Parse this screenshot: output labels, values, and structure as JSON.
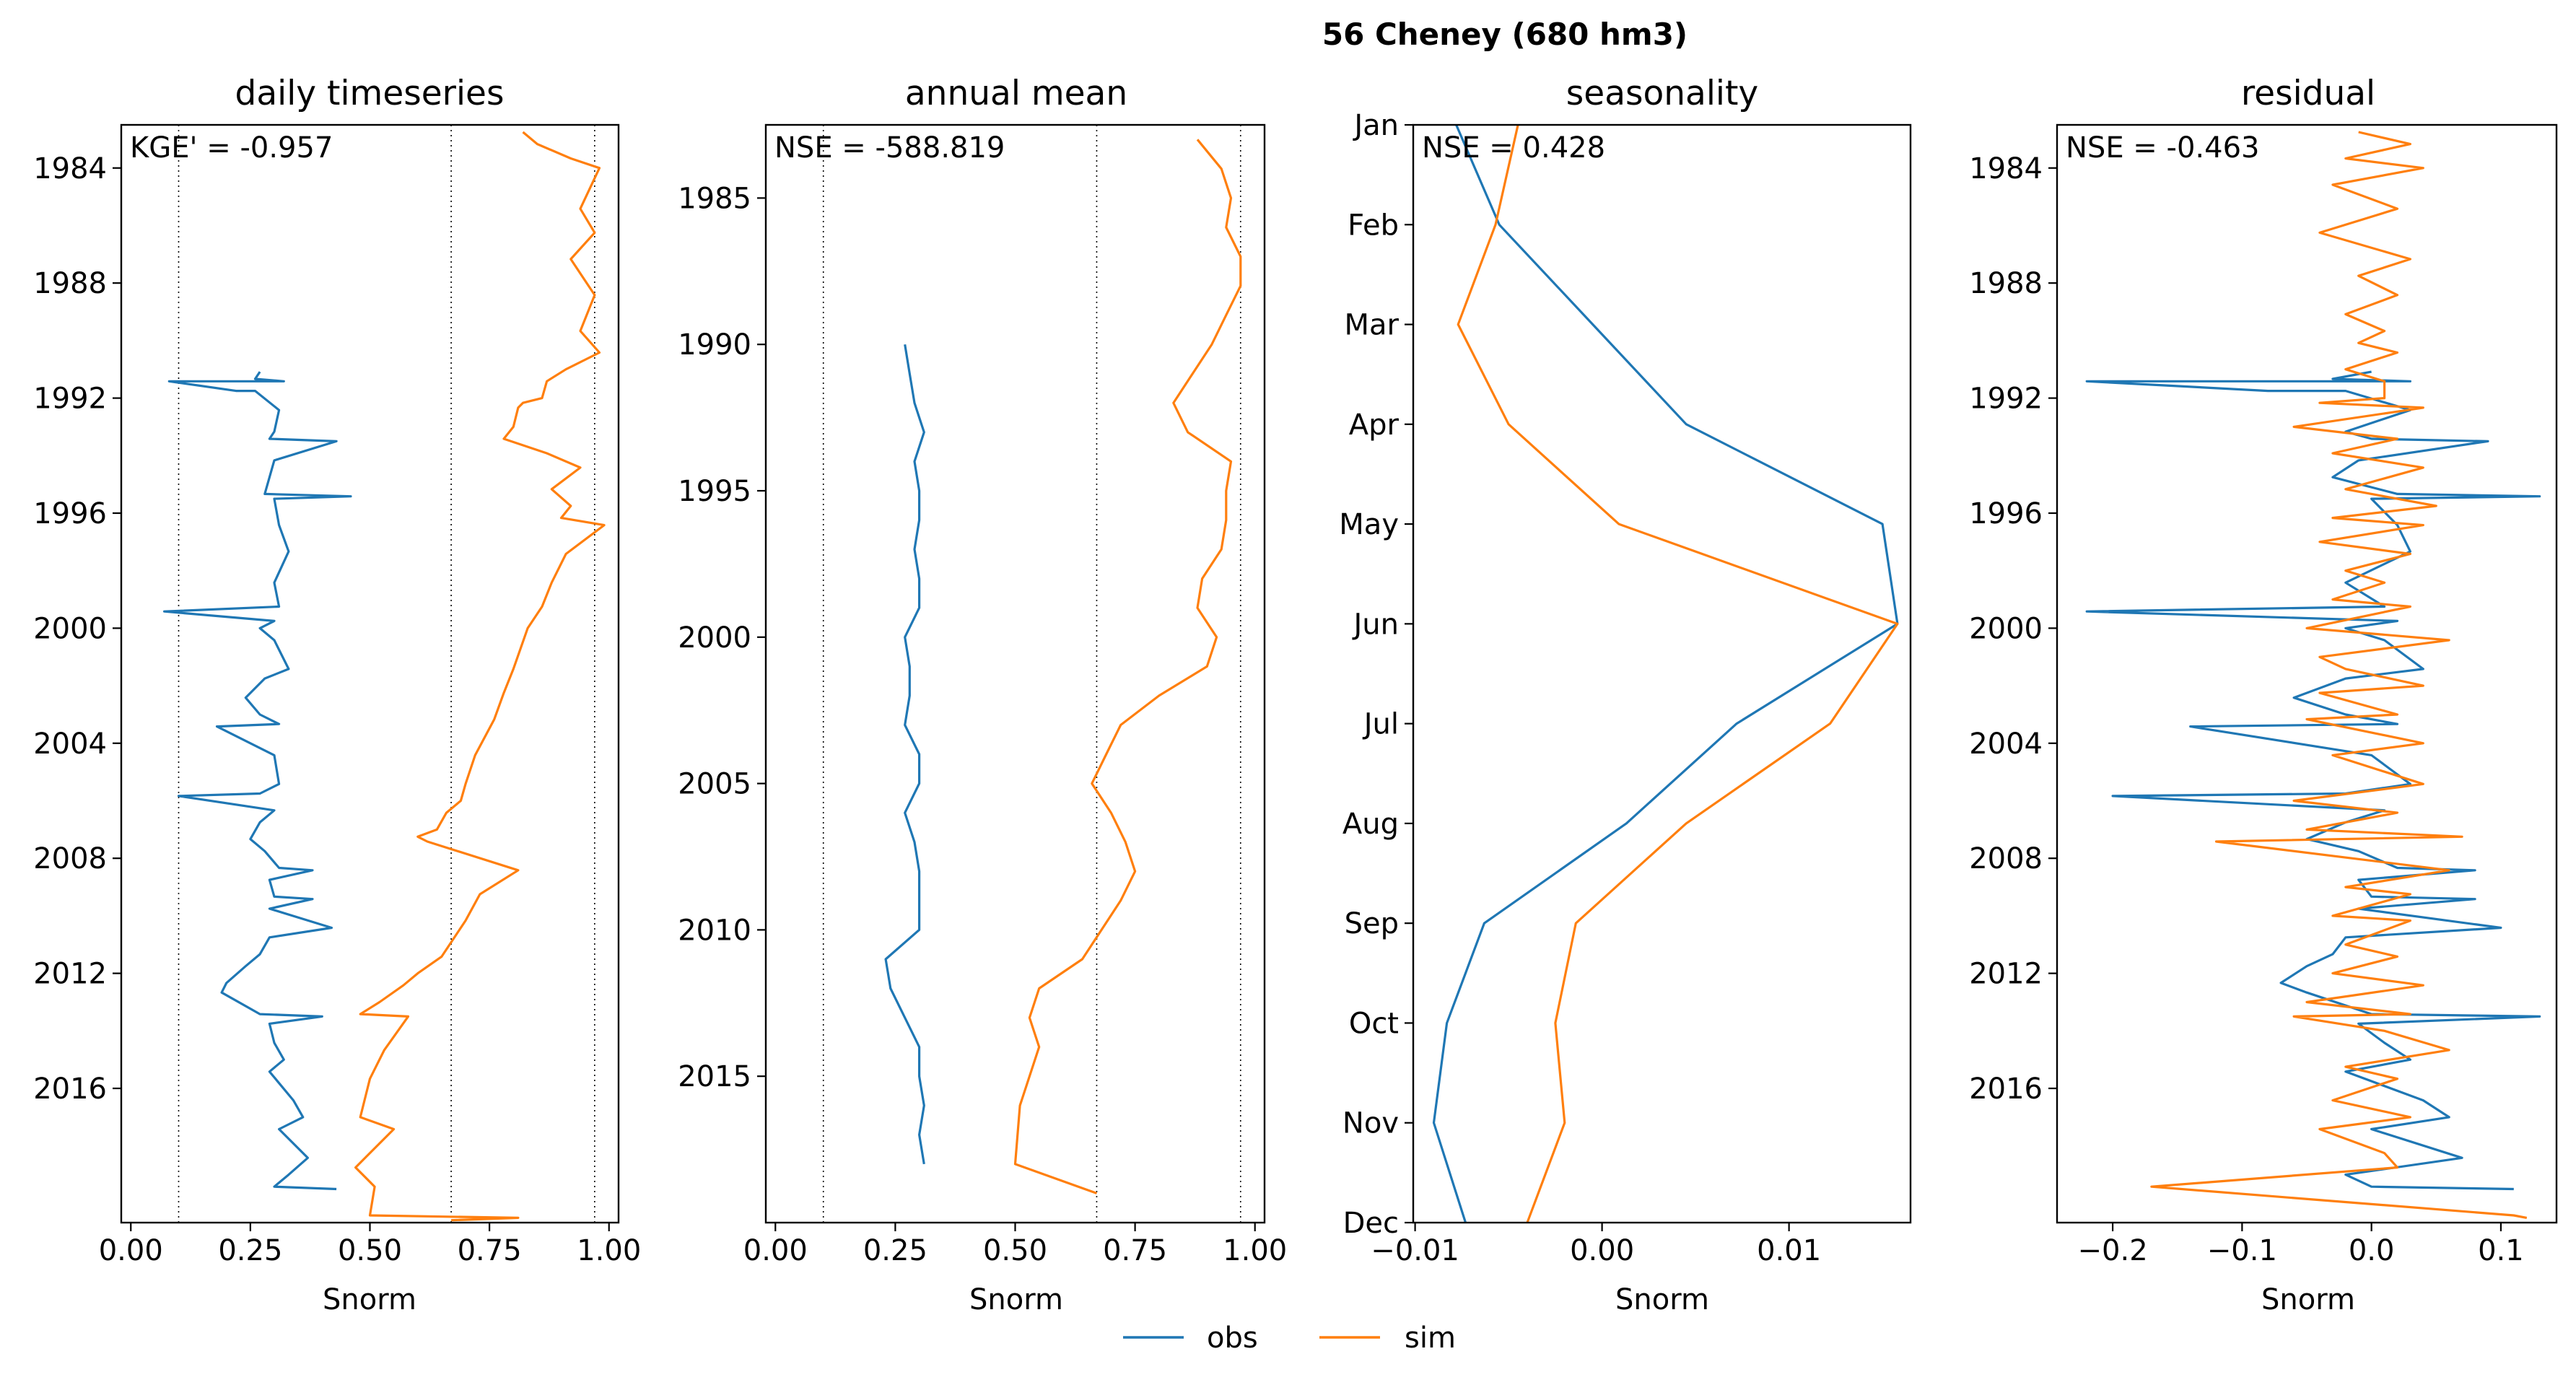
{
  "figure": {
    "suptitle": "56  Cheney (680 hm3)",
    "legend": [
      {
        "label": "obs",
        "color": "#1f77b4"
      },
      {
        "label": "sim",
        "color": "#ff7f0e"
      }
    ],
    "legend_position": "bottom-center"
  },
  "colors": {
    "obs": "#1f77b4",
    "sim": "#ff7f0e",
    "axis": "#000000",
    "guide": "#000000"
  },
  "chart_data": [
    {
      "type": "line",
      "orientation": "vertical-time",
      "title": "daily timeseries",
      "xlabel": "Snorm",
      "metric": "KGE' = -0.957",
      "xlim": [
        -0.02,
        1.02
      ],
      "ylim": [
        "1982-07-01",
        "2020-09-01"
      ],
      "y_axis_inverted": true,
      "xticks": [
        0.0,
        0.25,
        0.5,
        0.75,
        1.0
      ],
      "xtick_labels": [
        "0.00",
        "0.25",
        "0.50",
        "0.75",
        "1.00"
      ],
      "yticks": [
        1984,
        1988,
        1992,
        1996,
        2000,
        2004,
        2008,
        2012,
        2016
      ],
      "ytick_labels": [
        "1984",
        "1988",
        "1992",
        "1996",
        "2000",
        "2004",
        "2008",
        "2012",
        "2016"
      ],
      "reference_lines_x": [
        0.1,
        0.67,
        0.97
      ],
      "series": [
        {
          "name": "obs",
          "x": [
            0.27,
            0.26,
            0.32,
            0.08,
            0.22,
            0.26,
            0.31,
            0.3,
            0.29,
            0.43,
            0.3,
            0.29,
            0.28,
            0.46,
            0.3,
            0.31,
            0.33,
            0.3,
            0.31,
            0.07,
            0.3,
            0.27,
            0.3,
            0.33,
            0.28,
            0.24,
            0.27,
            0.31,
            0.18,
            0.3,
            0.31,
            0.27,
            0.1,
            0.3,
            0.27,
            0.25,
            0.28,
            0.31,
            0.38,
            0.29,
            0.3,
            0.38,
            0.29,
            0.42,
            0.29,
            0.27,
            0.24,
            0.2,
            0.19,
            0.27,
            0.4,
            0.29,
            0.3,
            0.32,
            0.29,
            0.34,
            0.36,
            0.31,
            0.37,
            0.33,
            0.3,
            0.43
          ],
          "y": [
            "1991-02",
            "1991-05",
            "1991-06",
            "1991-06",
            "1991-10",
            "1991-10",
            "1992-06",
            "1993-03",
            "1993-06",
            "1993-07",
            "1994-03",
            "1994-10",
            "1995-05",
            "1995-06",
            "1995-07",
            "1996-06",
            "1997-05",
            "1998-06",
            "1999-04",
            "1999-06",
            "1999-10",
            "2000-01",
            "2000-06",
            "2001-06",
            "2001-10",
            "2002-06",
            "2003-01",
            "2003-05",
            "2003-06",
            "2004-06",
            "2005-06",
            "2005-10",
            "2005-11",
            "2006-05",
            "2006-10",
            "2007-05",
            "2007-10",
            "2008-05",
            "2008-06",
            "2008-10",
            "2009-05",
            "2009-06",
            "2009-10",
            "2010-06",
            "2010-10",
            "2011-05",
            "2011-10",
            "2012-05",
            "2012-09",
            "2013-06",
            "2013-07",
            "2013-10",
            "2014-06",
            "2015-01",
            "2015-06",
            "2016-06",
            "2017-01",
            "2017-06",
            "2018-06",
            "2019-01",
            "2019-06",
            "2019-07"
          ]
        },
        {
          "name": "sim",
          "x": [
            0.82,
            0.85,
            0.92,
            0.98,
            0.94,
            0.97,
            0.92,
            0.97,
            0.94,
            0.98,
            0.91,
            0.87,
            0.86,
            0.82,
            0.81,
            0.8,
            0.78,
            0.87,
            0.94,
            0.88,
            0.92,
            0.9,
            0.99,
            0.91,
            0.88,
            0.86,
            0.83,
            0.8,
            0.78,
            0.76,
            0.72,
            0.7,
            0.69,
            0.66,
            0.64,
            0.6,
            0.62,
            0.81,
            0.73,
            0.7,
            0.65,
            0.6,
            0.57,
            0.52,
            0.48,
            0.58,
            0.53,
            0.5,
            0.48,
            0.55,
            0.47,
            0.51,
            0.5,
            0.81,
            0.67
          ],
          "y": [
            "1982-10",
            "1983-03",
            "1983-09",
            "1984-01",
            "1985-06",
            "1986-04",
            "1987-03",
            "1988-06",
            "1989-09",
            "1990-06",
            "1991-01",
            "1991-06",
            "1992-01",
            "1992-03",
            "1992-05",
            "1993-01",
            "1993-06",
            "1993-12",
            "1994-06",
            "1995-03",
            "1995-10",
            "1996-03",
            "1996-06",
            "1997-06",
            "1998-06",
            "1999-04",
            "2000-01",
            "2001-06",
            "2002-04",
            "2003-03",
            "2004-06",
            "2005-06",
            "2006-01",
            "2006-06",
            "2007-01",
            "2007-04",
            "2007-06",
            "2008-06",
            "2009-04",
            "2010-03",
            "2011-06",
            "2012-01",
            "2012-06",
            "2013-01",
            "2013-06",
            "2013-07",
            "2014-09",
            "2015-09",
            "2017-01",
            "2017-06",
            "2018-10",
            "2019-06",
            "2020-06",
            "2020-07",
            "2020-08"
          ]
        }
      ]
    },
    {
      "type": "line",
      "orientation": "vertical-time",
      "title": "annual mean",
      "xlabel": "Snorm",
      "metric": "NSE = -588.819",
      "xlim": [
        -0.02,
        1.02
      ],
      "ylim": [
        1982.5,
        2020.0
      ],
      "y_axis_inverted": true,
      "xticks": [
        0.0,
        0.25,
        0.5,
        0.75,
        1.0
      ],
      "xtick_labels": [
        "0.00",
        "0.25",
        "0.50",
        "0.75",
        "1.00"
      ],
      "yticks": [
        1985,
        1990,
        1995,
        2000,
        2005,
        2010,
        2015
      ],
      "ytick_labels": [
        "1985",
        "1990",
        "1995",
        "2000",
        "2005",
        "2010",
        "2015"
      ],
      "reference_lines_x": [
        0.1,
        0.67,
        0.97
      ],
      "series": [
        {
          "name": "obs",
          "x": [
            0.27,
            0.28,
            0.29,
            0.31,
            0.29,
            0.3,
            0.3,
            0.29,
            0.3,
            0.3,
            0.27,
            0.28,
            0.28,
            0.27,
            0.3,
            0.3,
            0.27,
            0.29,
            0.3,
            0.3,
            0.3,
            0.23,
            0.24,
            0.27,
            0.3,
            0.3,
            0.31,
            0.3,
            0.31
          ],
          "y": [
            1990,
            1991,
            1992,
            1993,
            1994,
            1995,
            1996,
            1997,
            1998,
            1999,
            2000,
            2001,
            2002,
            2003,
            2004,
            2005,
            2006,
            2007,
            2008,
            2009,
            2010,
            2011,
            2012,
            2013,
            2014,
            2015,
            2016,
            2017,
            2018
          ]
        },
        {
          "name": "sim",
          "x": [
            0.88,
            0.93,
            0.95,
            0.94,
            0.97,
            0.97,
            0.94,
            0.91,
            0.87,
            0.83,
            0.86,
            0.95,
            0.94,
            0.94,
            0.93,
            0.89,
            0.88,
            0.92,
            0.9,
            0.8,
            0.72,
            0.69,
            0.66,
            0.7,
            0.73,
            0.75,
            0.72,
            0.68,
            0.64,
            0.55,
            0.53,
            0.55,
            0.51,
            0.5,
            0.67
          ],
          "y": [
            1983,
            1984,
            1985,
            1986,
            1987,
            1988,
            1989,
            1990,
            1991,
            1992,
            1993,
            1994,
            1995,
            1996,
            1997,
            1998,
            1999,
            2000,
            2001,
            2002,
            2003,
            2004,
            2005,
            2006,
            2007,
            2008,
            2009,
            2010,
            2011,
            2012,
            2013,
            2014,
            2016,
            2018,
            2019
          ]
        }
      ]
    },
    {
      "type": "line",
      "orientation": "vertical-time",
      "title": "seasonality",
      "xlabel": "Snorm",
      "metric": "NSE = 0.428",
      "xlim": [
        -0.0101,
        0.0165
      ],
      "y_axis_inverted": true,
      "yticks": [
        "Jan",
        "Feb",
        "Mar",
        "Apr",
        "May",
        "Jun",
        "Jul",
        "Aug",
        "Sep",
        "Oct",
        "Nov",
        "Dec"
      ],
      "xticks": [
        -0.01,
        0.0,
        0.01
      ],
      "xtick_labels": [
        "−0.01",
        "0.00",
        "0.01"
      ],
      "series": [
        {
          "name": "obs",
          "x": [
            -0.0078,
            -0.0055,
            -0.0005,
            0.0045,
            0.015,
            0.0158,
            0.0072,
            0.0013,
            -0.0063,
            -0.0083,
            -0.009,
            -0.0073
          ],
          "y": [
            "Jan",
            "Feb",
            "Mar",
            "Apr",
            "May",
            "Jun",
            "Jul",
            "Aug",
            "Sep",
            "Oct",
            "Nov",
            "Dec"
          ]
        },
        {
          "name": "sim",
          "x": [
            -0.0045,
            -0.0057,
            -0.0077,
            -0.005,
            0.0009,
            0.0158,
            0.0122,
            0.0045,
            -0.0014,
            -0.0025,
            -0.002,
            -0.004
          ],
          "y": [
            "Jan",
            "Feb",
            "Mar",
            "Apr",
            "May",
            "Jun",
            "Jul",
            "Aug",
            "Sep",
            "Oct",
            "Nov",
            "Dec"
          ]
        }
      ]
    },
    {
      "type": "line",
      "orientation": "vertical-time",
      "title": "residual",
      "xlabel": "Snorm",
      "metric": "NSE = -0.463",
      "xlim": [
        -0.243,
        0.143
      ],
      "ylim": [
        "1982-07-01",
        "2020-09-01"
      ],
      "y_axis_inverted": true,
      "xticks": [
        -0.2,
        -0.1,
        0.0,
        0.1
      ],
      "xtick_labels": [
        "−0.2",
        "−0.1",
        "0.0",
        "0.1"
      ],
      "yticks": [
        1984,
        1988,
        1992,
        1996,
        2000,
        2004,
        2008,
        2012,
        2016
      ],
      "ytick_labels": [
        "1984",
        "1988",
        "1992",
        "1996",
        "2000",
        "2004",
        "2008",
        "2012",
        "2016"
      ],
      "series": [
        {
          "name": "obs",
          "x": [
            0.0,
            -0.03,
            0.03,
            -0.22,
            -0.08,
            -0.02,
            0.03,
            -0.02,
            0.0,
            0.09,
            -0.01,
            -0.03,
            0.02,
            0.13,
            0.0,
            0.02,
            0.03,
            -0.02,
            0.01,
            -0.22,
            0.02,
            -0.02,
            0.01,
            0.04,
            -0.02,
            -0.06,
            -0.02,
            0.02,
            -0.14,
            0.0,
            0.03,
            -0.02,
            -0.2,
            0.01,
            -0.02,
            -0.05,
            -0.01,
            0.02,
            0.08,
            -0.01,
            0.0,
            0.08,
            -0.01,
            0.1,
            -0.02,
            -0.03,
            -0.05,
            -0.07,
            -0.05,
            0.0,
            0.13,
            -0.01,
            0.01,
            0.03,
            -0.02,
            0.04,
            0.06,
            0.0,
            0.07,
            -0.02,
            0.0,
            0.11
          ],
          "y": [
            "1991-02",
            "1991-05",
            "1991-06",
            "1991-06",
            "1991-10",
            "1991-10",
            "1992-06",
            "1993-03",
            "1993-06",
            "1993-07",
            "1994-03",
            "1994-10",
            "1995-05",
            "1995-06",
            "1995-07",
            "1996-06",
            "1997-05",
            "1998-06",
            "1999-04",
            "1999-06",
            "1999-10",
            "2000-01",
            "2000-06",
            "2001-06",
            "2001-10",
            "2002-06",
            "2003-01",
            "2003-05",
            "2003-06",
            "2004-06",
            "2005-06",
            "2005-10",
            "2005-11",
            "2006-05",
            "2006-10",
            "2007-05",
            "2007-10",
            "2008-05",
            "2008-06",
            "2008-10",
            "2009-05",
            "2009-06",
            "2009-10",
            "2010-06",
            "2010-10",
            "2011-05",
            "2011-10",
            "2012-05",
            "2012-09",
            "2013-06",
            "2013-07",
            "2013-10",
            "2014-06",
            "2015-01",
            "2015-06",
            "2016-06",
            "2017-01",
            "2017-06",
            "2018-06",
            "2019-01",
            "2019-06",
            "2019-07"
          ]
        },
        {
          "name": "sim",
          "x": [
            -0.01,
            0.03,
            -0.02,
            0.04,
            -0.03,
            0.02,
            -0.04,
            0.03,
            -0.01,
            0.02,
            -0.02,
            0.01,
            -0.01,
            0.02,
            -0.02,
            0.01,
            0.01,
            -0.04,
            0.04,
            -0.06,
            0.02,
            -0.03,
            0.04,
            -0.02,
            0.05,
            -0.03,
            0.04,
            -0.04,
            0.03,
            -0.02,
            0.01,
            -0.03,
            0.03,
            -0.05,
            0.06,
            -0.04,
            -0.02,
            0.04,
            -0.04,
            0.02,
            -0.05,
            0.04,
            -0.03,
            0.04,
            -0.06,
            0.02,
            -0.05,
            0.07,
            -0.12,
            0.06,
            -0.02,
            0.03,
            -0.03,
            0.03,
            -0.02,
            0.02,
            -0.03,
            0.04,
            -0.05,
            0.03,
            -0.06,
            0.01,
            0.06,
            -0.02,
            0.02,
            -0.03,
            0.03,
            -0.04,
            0.01,
            0.02,
            -0.17,
            0.11,
            0.12
          ],
          "y": [
            "1982-10",
            "1983-03",
            "1983-09",
            "1984-01",
            "1984-08",
            "1985-06",
            "1986-04",
            "1987-03",
            "1987-10",
            "1988-06",
            "1989-02",
            "1989-09",
            "1990-02",
            "1990-06",
            "1991-01",
            "1991-06",
            "1992-01",
            "1992-03",
            "1992-05",
            "1993-01",
            "1993-06",
            "1993-12",
            "1994-06",
            "1995-03",
            "1995-10",
            "1996-03",
            "1996-06",
            "1997-01",
            "1997-06",
            "1998-01",
            "1998-06",
            "1999-01",
            "1999-04",
            "2000-01",
            "2000-06",
            "2001-01",
            "2001-06",
            "2002-01",
            "2002-04",
            "2003-01",
            "2003-03",
            "2004-01",
            "2004-06",
            "2005-06",
            "2006-01",
            "2006-06",
            "2007-01",
            "2007-04",
            "2007-06",
            "2008-06",
            "2009-01",
            "2009-04",
            "2010-01",
            "2010-03",
            "2011-01",
            "2011-06",
            "2012-01",
            "2012-06",
            "2013-01",
            "2013-06",
            "2013-07",
            "2014-01",
            "2014-09",
            "2015-04",
            "2015-09",
            "2016-06",
            "2017-01",
            "2017-06",
            "2018-04",
            "2018-10",
            "2019-06",
            "2020-06",
            "2020-07"
          ]
        }
      ]
    }
  ]
}
